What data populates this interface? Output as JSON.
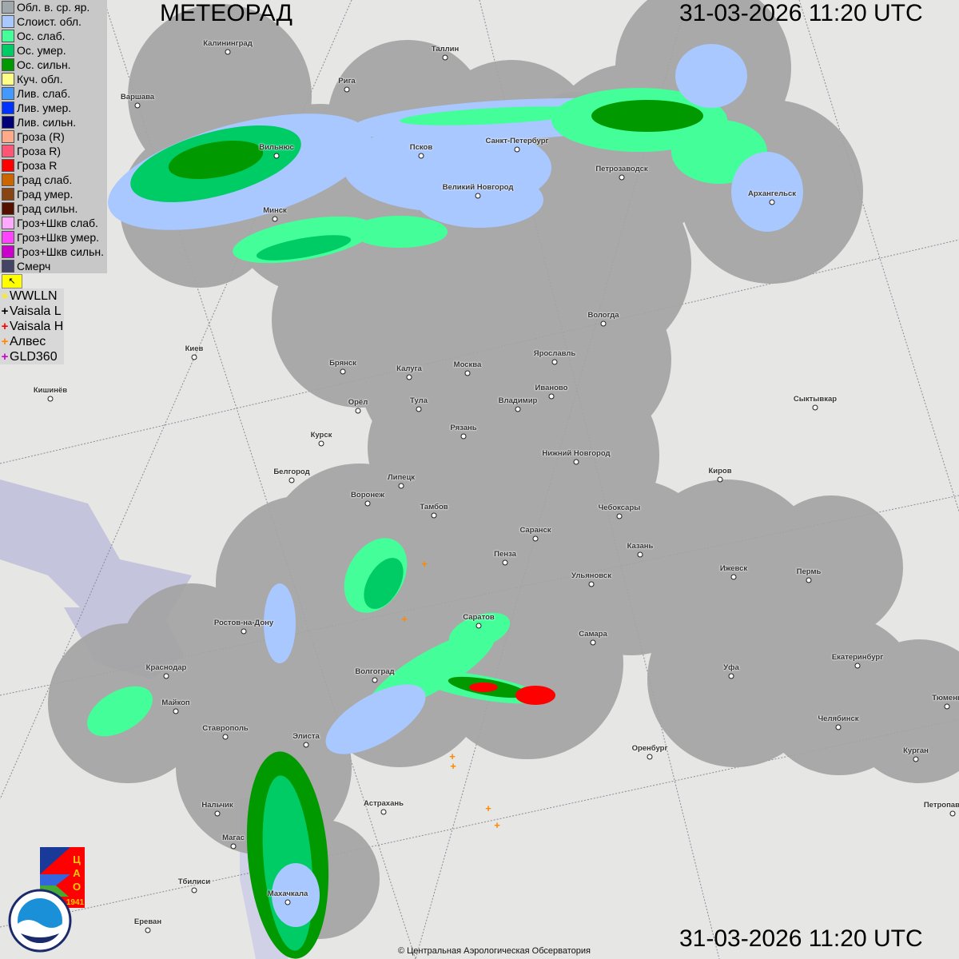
{
  "header": {
    "title": "МЕТЕОРАД",
    "datetime_top": "31-03-2026  11:20 UTC",
    "datetime_bottom": "31-03-2026  11:20 UTC"
  },
  "legend": {
    "items": [
      {
        "label": "Обл. в. ср. яр.",
        "color": "#a0a8ac"
      },
      {
        "label": "Слоист. обл.",
        "color": "#a8c8ff"
      },
      {
        "label": "Ос. слаб.",
        "color": "#44ff99"
      },
      {
        "label": "Ос. умер.",
        "color": "#00cc66"
      },
      {
        "label": "Ос. сильн.",
        "color": "#009900"
      },
      {
        "label": "Куч. обл.",
        "color": "#ffff88"
      },
      {
        "label": "Лив. слаб.",
        "color": "#4499ff"
      },
      {
        "label": "Лив. умер.",
        "color": "#0033ff"
      },
      {
        "label": "Лив. сильн.",
        "color": "#000077"
      },
      {
        "label": "Гроза (R)",
        "color": "#ffaa88"
      },
      {
        "label": "Гроза R)",
        "color": "#ff5577"
      },
      {
        "label": "Гроза R",
        "color": "#ff0000"
      },
      {
        "label": "Град слаб.",
        "color": "#cc6600"
      },
      {
        "label": "Град умер.",
        "color": "#884411"
      },
      {
        "label": "Град сильн.",
        "color": "#551100"
      },
      {
        "label": "Гроз+Шкв слаб.",
        "color": "#ffaaff"
      },
      {
        "label": "Гроз+Шкв умер.",
        "color": "#ff44ff"
      },
      {
        "label": "Гроз+Шкв сильн.",
        "color": "#cc00cc"
      },
      {
        "label": "Смерч",
        "color": "#444466"
      }
    ],
    "flag_icon": "flag-icon"
  },
  "lightning_sources": [
    {
      "label": "WWLLN",
      "color": "#ffee00"
    },
    {
      "label": "Vaisala L",
      "color": "#000000"
    },
    {
      "label": "Vaisala H",
      "color": "#ff0000"
    },
    {
      "label": "Алвес",
      "color": "#ff8800"
    },
    {
      "label": "GLD360",
      "color": "#cc00cc"
    }
  ],
  "cities": [
    "Калининград",
    "Таллин",
    "Рига",
    "Варшава",
    "Вильнюс",
    "Псков",
    "Санкт-Петербург",
    "Петрозаводск",
    "Великий Новгород",
    "Архангельск",
    "Минск",
    "Вологда",
    "Киев",
    "Брянск",
    "Калуга",
    "Москва",
    "Ярославль",
    "Иваново",
    "Кишинёв",
    "Орёл",
    "Тула",
    "Владимир",
    "Сыктывкар",
    "Рязань",
    "Курск",
    "Нижний Новгород",
    "Белгород",
    "Липецк",
    "Киров",
    "Воронеж",
    "Тамбов",
    "Чебоксары",
    "Саранск",
    "Казань",
    "Пенза",
    "Ижевск",
    "Пермь",
    "Ульяновск",
    "Ростов-на-Дону",
    "Саратов",
    "Самара",
    "Краснодар",
    "Волгоград",
    "Уфа",
    "Екатеринбург",
    "Тюмень",
    "Майкоп",
    "Челябинск",
    "Ставрополь",
    "Элиста",
    "Оренбург",
    "Курган",
    "Нальчик",
    "Астрахань",
    "Петропавловск",
    "Магас",
    "Тбилиси",
    "Махачкала",
    "Ереван"
  ],
  "logos": {
    "cao": "ЦАО 1941",
    "roshydromet": "РОСГИДРОМЕТ ROSHYDROMET"
  },
  "copyright": "© Центральная Аэрологическая Обсерватория",
  "colors": {
    "radar_coverage": "#a4a4a4",
    "map_background": "#e6e6e4"
  }
}
